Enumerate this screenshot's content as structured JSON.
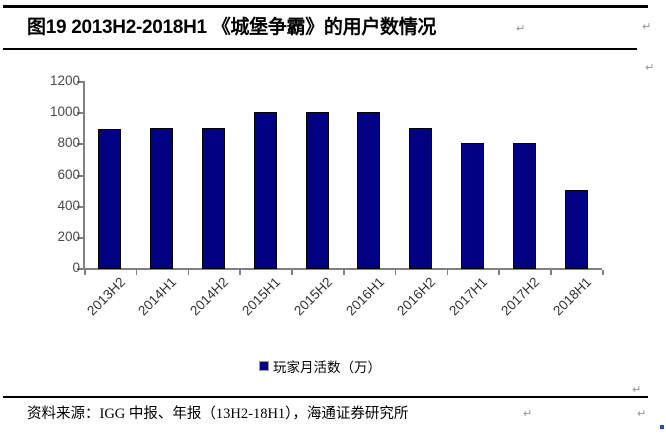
{
  "document": {
    "title": "图19 2013H2-2018H1 《城堡争霸》的用户数情况",
    "source_line": "资料来源：IGG 中报、年报（13H2-18H1），海通证券研究所",
    "paragraph_mark": "↵"
  },
  "chart_data": {
    "type": "bar",
    "title": "图19 2013H2-2018H1 《城堡争霸》的用户数情况",
    "categories": [
      "2013H2",
      "2014H1",
      "2014H2",
      "2015H1",
      "2015H2",
      "2016H1",
      "2016H2",
      "2017H1",
      "2017H2",
      "2018H1"
    ],
    "series": [
      {
        "name": "玩家月活数（万）",
        "values": [
          890,
          900,
          900,
          1000,
          1000,
          1000,
          900,
          800,
          800,
          500
        ]
      }
    ],
    "xlabel": "",
    "ylabel": "",
    "ylim": [
      0,
      1200
    ],
    "yticks": [
      0,
      200,
      400,
      600,
      800,
      1000,
      1200
    ],
    "grid": false,
    "legend_position": "bottom",
    "x_label_rotation_deg": -45,
    "colors": {
      "bar_fill": "#000080",
      "bar_border": "#000000",
      "axis": "#808080",
      "y_tick_label": "#4a4a4a",
      "x_tick_label": "#333333"
    }
  }
}
